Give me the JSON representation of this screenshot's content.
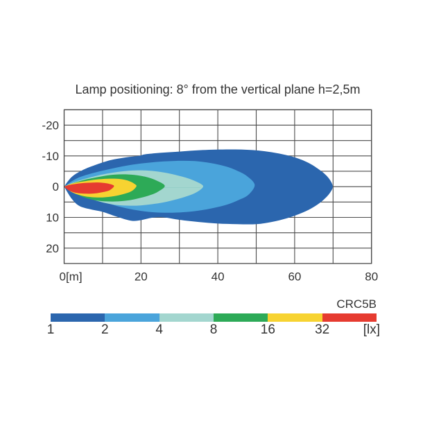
{
  "title": "Lamp positioning: 8° from the vertical plane h=2,5m",
  "colors": {
    "text": "#333333",
    "grid": "#4a4a4a",
    "background": "#ffffff",
    "seam": "#8bcbc3"
  },
  "legend": {
    "series_label": "CRC5B",
    "unit_label": "[lx]",
    "segments": [
      {
        "label": "1",
        "color": "#2b66ae"
      },
      {
        "label": "2",
        "color": "#4aa4db"
      },
      {
        "label": "4",
        "color": "#a3d6cf"
      },
      {
        "label": "8",
        "color": "#2daa57"
      },
      {
        "label": "16",
        "color": "#f7d331"
      },
      {
        "label": "32",
        "color": "#e63b30"
      }
    ]
  },
  "chart_data": {
    "type": "contour",
    "title": "Lamp positioning: 8° from the vertical plane h=2,5m",
    "xlabel": "[m]",
    "ylabel": "",
    "unit": "lx",
    "x_range": [
      0,
      80
    ],
    "y_range": [
      -25,
      25
    ],
    "x_grid_step": 10,
    "y_grid_step": 5,
    "grid": true,
    "legend_position": "bottom",
    "x_ticks": [
      {
        "value": 0,
        "label": "0[m]"
      },
      {
        "value": 20,
        "label": "20"
      },
      {
        "value": 40,
        "label": "40"
      },
      {
        "value": 60,
        "label": "60"
      },
      {
        "value": 80,
        "label": "80"
      }
    ],
    "y_ticks": [
      {
        "value": -20,
        "label": "-20"
      },
      {
        "value": -10,
        "label": "-10"
      },
      {
        "value": 0,
        "label": "0"
      },
      {
        "value": 10,
        "label": "10"
      },
      {
        "value": 20,
        "label": "20"
      }
    ],
    "contours": [
      {
        "level_lx": 1,
        "color": "#2b66ae",
        "points": [
          [
            0,
            0
          ],
          [
            2,
            -3.2
          ],
          [
            5,
            -5.5
          ],
          [
            8,
            -7.0
          ],
          [
            12,
            -8.6
          ],
          [
            16,
            -9.5
          ],
          [
            19.5,
            -10.0
          ],
          [
            21,
            -10.5
          ],
          [
            25,
            -11.0
          ],
          [
            30,
            -11.4
          ],
          [
            36,
            -11.9
          ],
          [
            43,
            -12.1
          ],
          [
            49,
            -11.9
          ],
          [
            54,
            -11.2
          ],
          [
            59,
            -9.9
          ],
          [
            63,
            -8.1
          ],
          [
            66,
            -5.9
          ],
          [
            68.5,
            -3.3
          ],
          [
            69.9,
            -0.3
          ],
          [
            69.2,
            2.0
          ],
          [
            67.5,
            4.3
          ],
          [
            65,
            6.6
          ],
          [
            62,
            8.5
          ],
          [
            58,
            10.3
          ],
          [
            54,
            11.5
          ],
          [
            50,
            12.2
          ],
          [
            45,
            12.2
          ],
          [
            40,
            12.0
          ],
          [
            35,
            11.5
          ],
          [
            30,
            10.8
          ],
          [
            26,
            10.0
          ],
          [
            23,
            10.1
          ],
          [
            20,
            10.9
          ],
          [
            17.5,
            11.1
          ],
          [
            14,
            9.9
          ],
          [
            10,
            8.2
          ],
          [
            7,
            7.4
          ],
          [
            4,
            6.3
          ],
          [
            2,
            4.0
          ]
        ]
      },
      {
        "level_lx": 2,
        "color": "#4aa4db",
        "points": [
          [
            0,
            0
          ],
          [
            3,
            -2.5
          ],
          [
            6,
            -3.9
          ],
          [
            10,
            -5.2
          ],
          [
            14,
            -6.3
          ],
          [
            18,
            -7.2
          ],
          [
            22,
            -7.8
          ],
          [
            26,
            -8.2
          ],
          [
            30,
            -8.4
          ],
          [
            34,
            -8.3
          ],
          [
            38,
            -7.7
          ],
          [
            42,
            -6.6
          ],
          [
            45,
            -5.2
          ],
          [
            47.5,
            -3.5
          ],
          [
            49.6,
            -0.6
          ],
          [
            48,
            2.6
          ],
          [
            45.5,
            4.3
          ],
          [
            42.5,
            5.8
          ],
          [
            39,
            6.9
          ],
          [
            35,
            7.8
          ],
          [
            31,
            8.3
          ],
          [
            27,
            8.5
          ],
          [
            23,
            8.3
          ],
          [
            19,
            7.7
          ],
          [
            15,
            6.7
          ],
          [
            11,
            5.3
          ],
          [
            7,
            3.9
          ],
          [
            3.5,
            2.3
          ]
        ]
      },
      {
        "level_lx": 4,
        "color": "#a3d6cf",
        "points": [
          [
            0,
            0
          ],
          [
            2.5,
            -1.4
          ],
          [
            5,
            -2.4
          ],
          [
            8,
            -3.4
          ],
          [
            11,
            -4.2
          ],
          [
            14,
            -4.8
          ],
          [
            17,
            -5.2
          ],
          [
            20,
            -5.3
          ],
          [
            23,
            -5.1
          ],
          [
            26,
            -4.6
          ],
          [
            29,
            -3.8
          ],
          [
            32,
            -2.8
          ],
          [
            34.5,
            -1.6
          ],
          [
            36.2,
            -0.1
          ],
          [
            34.5,
            1.8
          ],
          [
            32,
            3.1
          ],
          [
            29,
            4.2
          ],
          [
            26,
            5.1
          ],
          [
            23,
            5.7
          ],
          [
            20,
            6.1
          ],
          [
            17,
            6.2
          ],
          [
            14,
            6.0
          ],
          [
            11,
            5.4
          ],
          [
            8,
            4.4
          ],
          [
            5,
            3.1
          ],
          [
            2.5,
            1.7
          ]
        ]
      },
      {
        "level_lx": 8,
        "color": "#2daa57",
        "points": [
          [
            0,
            0
          ],
          [
            2,
            -1.0
          ],
          [
            4,
            -1.8
          ],
          [
            7,
            -2.7
          ],
          [
            10,
            -3.4
          ],
          [
            13,
            -3.9
          ],
          [
            16,
            -4.0
          ],
          [
            19,
            -3.7
          ],
          [
            21.5,
            -3.1
          ],
          [
            23.8,
            -2.1
          ],
          [
            26.2,
            -0.3
          ],
          [
            24.5,
            1.6
          ],
          [
            22.5,
            2.7
          ],
          [
            20,
            3.6
          ],
          [
            17,
            4.4
          ],
          [
            14,
            4.8
          ],
          [
            11,
            4.8
          ],
          [
            8,
            4.4
          ],
          [
            5,
            3.4
          ],
          [
            2.5,
            2.0
          ]
        ]
      },
      {
        "level_lx": 16,
        "color": "#f7d331",
        "points": [
          [
            0,
            0
          ],
          [
            1.5,
            -0.8
          ],
          [
            3.5,
            -1.4
          ],
          [
            6,
            -1.9
          ],
          [
            9,
            -2.4
          ],
          [
            12,
            -2.6
          ],
          [
            14.5,
            -2.5
          ],
          [
            16.5,
            -2.0
          ],
          [
            18.2,
            -1.0
          ],
          [
            18.8,
            -0.1
          ],
          [
            17.5,
            1.5
          ],
          [
            15.5,
            2.4
          ],
          [
            13,
            3.1
          ],
          [
            10,
            3.5
          ],
          [
            7,
            3.4
          ],
          [
            4.5,
            2.9
          ],
          [
            2,
            1.8
          ]
        ]
      },
      {
        "level_lx": 32,
        "color": "#e63b30",
        "points": [
          [
            0,
            0
          ],
          [
            1.2,
            -0.5
          ],
          [
            3,
            -0.9
          ],
          [
            5.5,
            -1.2
          ],
          [
            8,
            -1.35
          ],
          [
            10,
            -1.25
          ],
          [
            11.8,
            -0.9
          ],
          [
            13.0,
            -0.2
          ],
          [
            11.8,
            1.2
          ],
          [
            10,
            1.8
          ],
          [
            8,
            2.2
          ],
          [
            5.5,
            2.3
          ],
          [
            3,
            2.0
          ],
          [
            1.2,
            1.2
          ]
        ]
      }
    ]
  }
}
